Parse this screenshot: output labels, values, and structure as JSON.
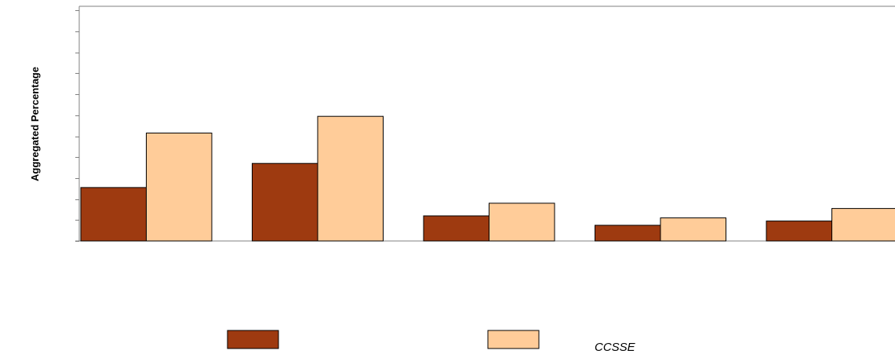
{
  "chart_data": {
    "type": "bar",
    "title": "",
    "xlabel": "",
    "ylabel": "Aggregated Percentage",
    "categories": [
      "",
      "",
      "",
      "",
      ""
    ],
    "series": [
      {
        "name": "",
        "color": "#9E3A10",
        "values": [
          25.5,
          37,
          12,
          7.5,
          9.5
        ]
      },
      {
        "name": "CCSSE",
        "color": "#FFCC99",
        "values": [
          51.5,
          59.5,
          18,
          11,
          15.5
        ]
      }
    ],
    "ylim": [
      0,
      112
    ],
    "yticks": [
      0,
      10,
      20,
      30,
      40,
      50,
      60,
      70,
      80,
      90,
      100,
      110
    ],
    "grid": false,
    "legend_position": "bottom"
  }
}
